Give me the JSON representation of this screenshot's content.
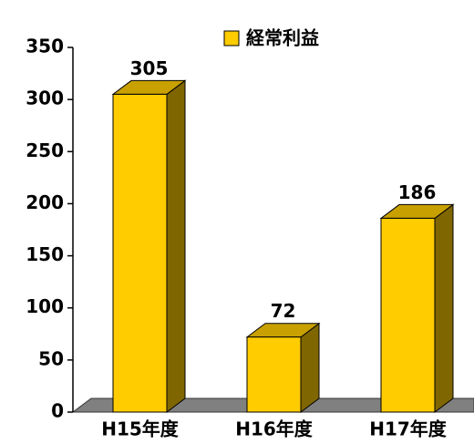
{
  "chart_data": {
    "type": "bar",
    "categories": [
      "H15年度",
      "H16年度",
      "H17年度"
    ],
    "series": [
      {
        "name": "経常利益",
        "color": "#FFCC00",
        "values": [
          305,
          72,
          186
        ]
      }
    ],
    "ylim": [
      0,
      350
    ],
    "yticks": [
      0,
      50,
      100,
      150,
      200,
      250,
      300,
      350
    ],
    "legend": "top"
  }
}
